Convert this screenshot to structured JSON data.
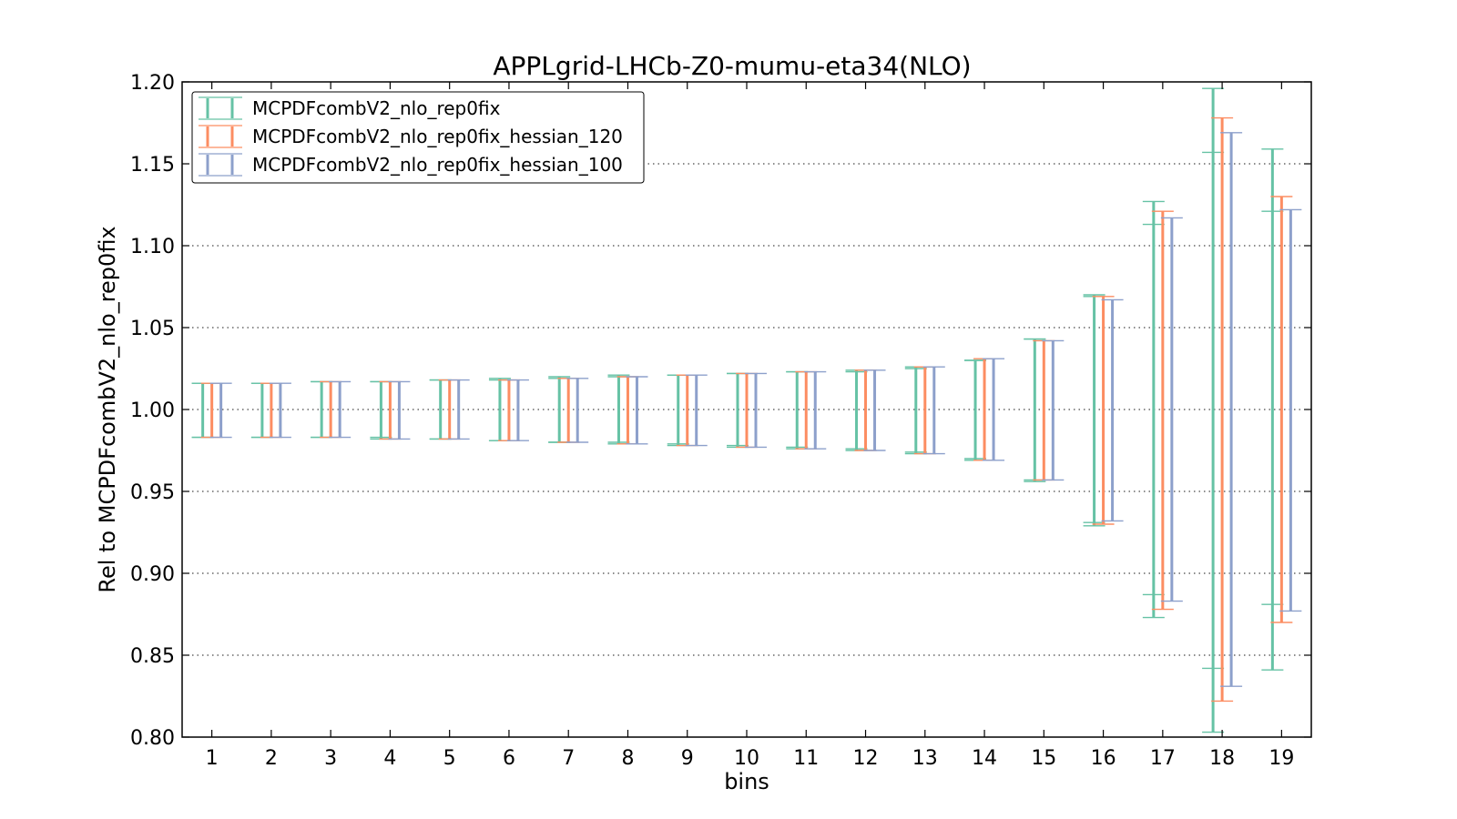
{
  "chart_data": {
    "type": "errorbar",
    "title": "APPLgrid-LHCb-Z0-mumu-eta34(NLO)",
    "xlabel": "bins",
    "ylabel": "Rel to MCPDFcombV2_nlo_rep0fix",
    "xlim": [
      0.5,
      19.5
    ],
    "ylim": [
      0.8,
      1.2
    ],
    "yticks": [
      0.8,
      0.85,
      0.9,
      0.95,
      1.0,
      1.05,
      1.1,
      1.15,
      1.2
    ],
    "ytick_labels": [
      "0.80",
      "0.85",
      "0.90",
      "0.95",
      "1.00",
      "1.05",
      "1.10",
      "1.15",
      "1.20"
    ],
    "categories": [
      "1",
      "2",
      "3",
      "4",
      "5",
      "6",
      "7",
      "8",
      "9",
      "10",
      "11",
      "12",
      "13",
      "14",
      "15",
      "16",
      "17",
      "18",
      "19"
    ],
    "grid": "y-dotted",
    "legend_position": "top-left",
    "series": [
      {
        "name": "MCPDFcombV2_nlo_rep0fix",
        "color": "#66c2a5",
        "low": [
          0.983,
          0.983,
          0.983,
          0.982,
          0.982,
          0.981,
          0.98,
          0.979,
          0.978,
          0.977,
          0.976,
          0.975,
          0.973,
          0.969,
          0.956,
          0.929,
          0.873,
          0.803,
          0.841
        ],
        "high": [
          1.016,
          1.016,
          1.017,
          1.017,
          1.018,
          1.019,
          1.02,
          1.021,
          1.021,
          1.022,
          1.023,
          1.024,
          1.026,
          1.03,
          1.043,
          1.07,
          1.127,
          1.196,
          1.159
        ],
        "inner_low": [
          0.983,
          0.983,
          0.983,
          0.983,
          0.982,
          0.981,
          0.98,
          0.98,
          0.979,
          0.978,
          0.977,
          0.976,
          0.974,
          0.97,
          0.957,
          0.931,
          0.887,
          0.842,
          0.881
        ],
        "inner_high": [
          1.016,
          1.016,
          1.017,
          1.017,
          1.018,
          1.018,
          1.019,
          1.02,
          1.021,
          1.022,
          1.023,
          1.023,
          1.025,
          1.03,
          1.043,
          1.069,
          1.113,
          1.157,
          1.121
        ]
      },
      {
        "name": "MCPDFcombV2_nlo_rep0fix_hessian_120",
        "color": "#fc8d62",
        "low": [
          0.983,
          0.983,
          0.983,
          0.982,
          0.982,
          0.981,
          0.98,
          0.979,
          0.978,
          0.977,
          0.976,
          0.975,
          0.973,
          0.969,
          0.957,
          0.93,
          0.878,
          0.822,
          0.87
        ],
        "high": [
          1.016,
          1.016,
          1.017,
          1.017,
          1.018,
          1.018,
          1.019,
          1.02,
          1.021,
          1.022,
          1.023,
          1.024,
          1.026,
          1.031,
          1.042,
          1.069,
          1.121,
          1.178,
          1.13
        ]
      },
      {
        "name": "MCPDFcombV2_nlo_rep0fix_hessian_100",
        "color": "#8da0cb",
        "low": [
          0.983,
          0.983,
          0.983,
          0.982,
          0.982,
          0.981,
          0.98,
          0.979,
          0.978,
          0.977,
          0.976,
          0.975,
          0.973,
          0.969,
          0.957,
          0.932,
          0.883,
          0.831,
          0.877
        ],
        "high": [
          1.016,
          1.016,
          1.017,
          1.017,
          1.018,
          1.018,
          1.019,
          1.02,
          1.021,
          1.022,
          1.023,
          1.024,
          1.026,
          1.031,
          1.042,
          1.067,
          1.117,
          1.169,
          1.122
        ]
      }
    ]
  }
}
